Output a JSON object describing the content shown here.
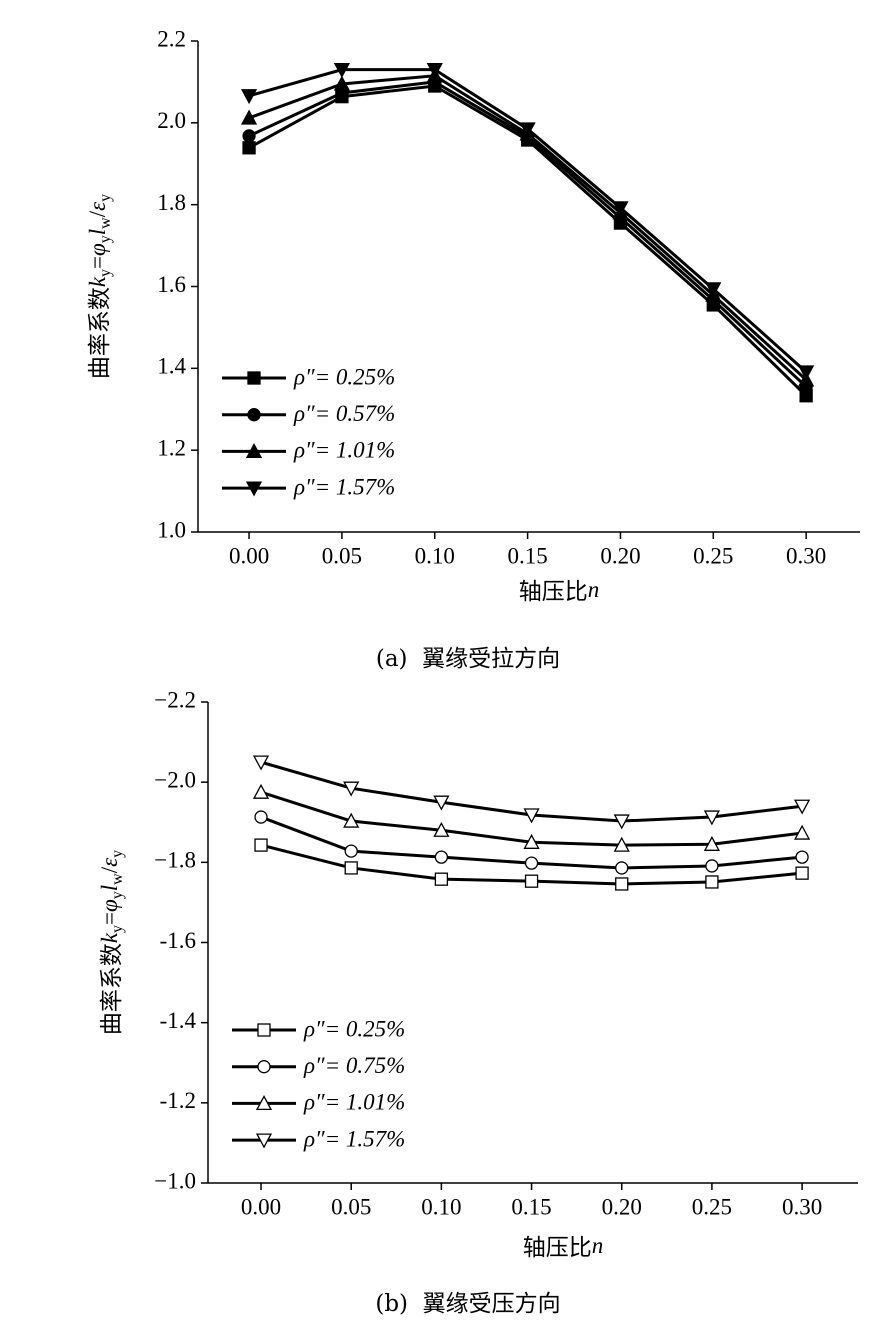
{
  "chart_data": [
    {
      "type": "line",
      "caption": "(a)  翼缘受拉方向",
      "y_label": [
        "曲率系数",
        "k",
        "y",
        "=",
        "φ",
        "y",
        "l",
        "w",
        "/",
        "ε",
        "y"
      ],
      "x_label": [
        "轴压比",
        "n"
      ],
      "x": [
        0,
        0.05,
        0.1,
        0.15,
        0.2,
        0.25,
        0.3
      ],
      "xlim": [
        -0.0275,
        0.329
      ],
      "xticks": [
        {
          "value": 0,
          "label": "0.00"
        },
        {
          "value": 0.05,
          "label": "0.05"
        },
        {
          "value": 0.1,
          "label": "0.10"
        },
        {
          "value": 0.15,
          "label": "0.15"
        },
        {
          "value": 0.2,
          "label": "0.20"
        },
        {
          "value": 0.25,
          "label": "0.25"
        },
        {
          "value": 0.3,
          "label": "0.30"
        }
      ],
      "ylim": [
        1.0,
        2.2
      ],
      "yticks": [
        {
          "value": 1,
          "label": "1.0"
        },
        1.2,
        1.4,
        1.6,
        1.8,
        {
          "value": 2,
          "label": "2.0"
        },
        2.2
      ],
      "marker_face": "#000000",
      "series": [
        {
          "name": "ρ″= 0.25%",
          "color": "#000000",
          "marker": "square",
          "values": [
            1.939,
            2.064,
            2.09,
            1.958,
            1.755,
            1.555,
            1.333
          ]
        },
        {
          "name": "ρ″= 0.57%",
          "color": "#000000",
          "marker": "circle",
          "values": [
            1.968,
            2.073,
            2.1,
            1.966,
            1.768,
            1.567,
            1.355
          ]
        },
        {
          "name": "ρ″= 1.01%",
          "color": "#000000",
          "marker": "triangle-up",
          "values": [
            2.012,
            2.095,
            2.115,
            1.973,
            1.78,
            1.579,
            1.372
          ]
        },
        {
          "name": "ρ″= 1.57%",
          "color": "#000000",
          "marker": "triangle-down",
          "values": [
            2.066,
            2.13,
            2.13,
            1.985,
            1.792,
            1.594,
            1.391
          ]
        }
      ]
    },
    {
      "type": "line",
      "caption": "(b)  翼缘受压方向",
      "y_label": [
        "曲率系数",
        "k",
        "y",
        "=",
        "φ",
        "y",
        "l",
        "w",
        "/",
        "ε",
        "y"
      ],
      "x_label": [
        "轴压比",
        "n"
      ],
      "x": [
        0,
        0.05,
        0.1,
        0.15,
        0.2,
        0.25,
        0.3
      ],
      "xlim": [
        -0.0294,
        0.331
      ],
      "xticks": [
        {
          "value": 0,
          "label": "0.00"
        },
        {
          "value": 0.05,
          "label": "0.05"
        },
        {
          "value": 0.1,
          "label": "0.10"
        },
        {
          "value": 0.15,
          "label": "0.15"
        },
        {
          "value": 0.2,
          "label": "0.20"
        },
        {
          "value": 0.25,
          "label": "0.25"
        },
        {
          "value": 0.3,
          "label": "0.30"
        }
      ],
      "ylim": [
        -1.0,
        -2.2
      ],
      "yticks": [
        {
          "value": -1,
          "label": "−1.0"
        },
        -1.2,
        -1.4,
        -1.6,
        {
          "value": -1.8,
          "label": "−1.8"
        },
        {
          "value": -2,
          "label": "−2.0"
        },
        {
          "value": -2.2,
          "label": "−2.2"
        }
      ],
      "marker_face": "#ffffff",
      "series": [
        {
          "name": "ρ″= 0.25%",
          "color": "#000000",
          "marker": "square",
          "values": [
            -1.843,
            -1.786,
            -1.758,
            -1.753,
            -1.746,
            -1.751,
            -1.773
          ]
        },
        {
          "name": "ρ″= 0.75%",
          "color": "#000000",
          "marker": "circle",
          "values": [
            -1.913,
            -1.828,
            -1.813,
            -1.798,
            -1.786,
            -1.791,
            -1.813
          ]
        },
        {
          "name": "ρ″= 1.01%",
          "color": "#000000",
          "marker": "triangle-up",
          "values": [
            -1.975,
            -1.903,
            -1.88,
            -1.85,
            -1.843,
            -1.845,
            -1.873
          ]
        },
        {
          "name": "ρ″= 1.57%",
          "color": "#000000",
          "marker": "triangle-down",
          "values": [
            -2.05,
            -1.985,
            -1.95,
            -1.918,
            -1.903,
            -1.913,
            -1.94
          ]
        }
      ]
    }
  ]
}
